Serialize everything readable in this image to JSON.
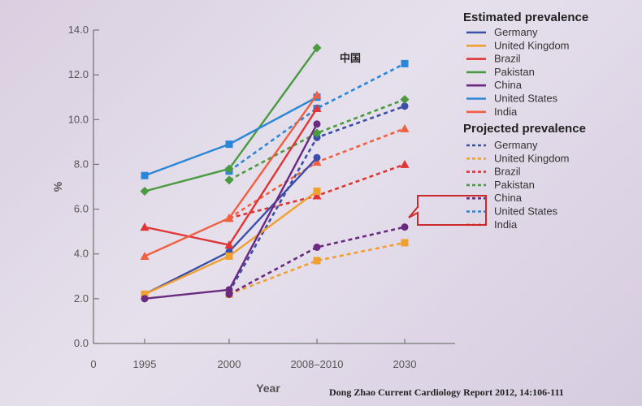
{
  "chart_data": {
    "type": "line",
    "xlabel": "Year",
    "ylabel": "%",
    "ylim": [
      0,
      14
    ],
    "yticks": [
      "0.0",
      "2.0",
      "4.0",
      "6.0",
      "8.0",
      "10.0",
      "12.0",
      "14.0"
    ],
    "x_origin_label": "0",
    "categories": [
      "1995",
      "2000",
      "2008–2010",
      "2030"
    ],
    "grid": false,
    "annotation": "中国",
    "colors": {
      "Germany": "#3b4fa8",
      "United Kingdom": "#f0a030",
      "Brazil": "#e03535",
      "Pakistan": "#4a9a40",
      "China": "#6a2a80",
      "United States": "#2a86d6",
      "India": "#f06040"
    },
    "estimated": {
      "title": "Estimated prevalence",
      "series": [
        {
          "name": "Germany",
          "marker": "circle",
          "values": [
            2.2,
            4.1,
            8.3,
            null
          ]
        },
        {
          "name": "United Kingdom",
          "marker": "square",
          "values": [
            2.2,
            3.9,
            6.8,
            null
          ]
        },
        {
          "name": "Brazil",
          "marker": "triangle",
          "values": [
            5.2,
            4.4,
            10.5,
            null
          ]
        },
        {
          "name": "Pakistan",
          "marker": "diamond",
          "values": [
            6.8,
            7.8,
            13.2,
            null
          ]
        },
        {
          "name": "China",
          "marker": "circle",
          "values": [
            2.0,
            2.4,
            9.8,
            null
          ]
        },
        {
          "name": "United States",
          "marker": "square",
          "values": [
            7.5,
            8.9,
            11.0,
            null
          ]
        },
        {
          "name": "India",
          "marker": "triangle",
          "values": [
            3.9,
            5.6,
            11.1,
            null
          ]
        }
      ]
    },
    "projected": {
      "title": "Projected prevalence",
      "series": [
        {
          "name": "Germany",
          "marker": "circle",
          "values": [
            null,
            2.3,
            9.2,
            10.6
          ]
        },
        {
          "name": "United Kingdom",
          "marker": "square",
          "values": [
            null,
            2.2,
            3.7,
            4.5
          ]
        },
        {
          "name": "Brazil",
          "marker": "triangle",
          "values": [
            null,
            5.6,
            6.6,
            8.0
          ]
        },
        {
          "name": "Pakistan",
          "marker": "diamond",
          "values": [
            null,
            7.3,
            9.4,
            10.9
          ]
        },
        {
          "name": "China",
          "marker": "circle",
          "values": [
            null,
            2.2,
            4.3,
            5.2
          ]
        },
        {
          "name": "United States",
          "marker": "square",
          "values": [
            null,
            7.7,
            10.5,
            12.5
          ]
        },
        {
          "name": "India",
          "marker": "triangle",
          "values": [
            null,
            5.6,
            8.1,
            9.6
          ]
        }
      ]
    },
    "highlight_color": "#cc2a2a"
  },
  "citation": "Dong Zhao Current  Cardiology Report  2012, 14:106-111"
}
